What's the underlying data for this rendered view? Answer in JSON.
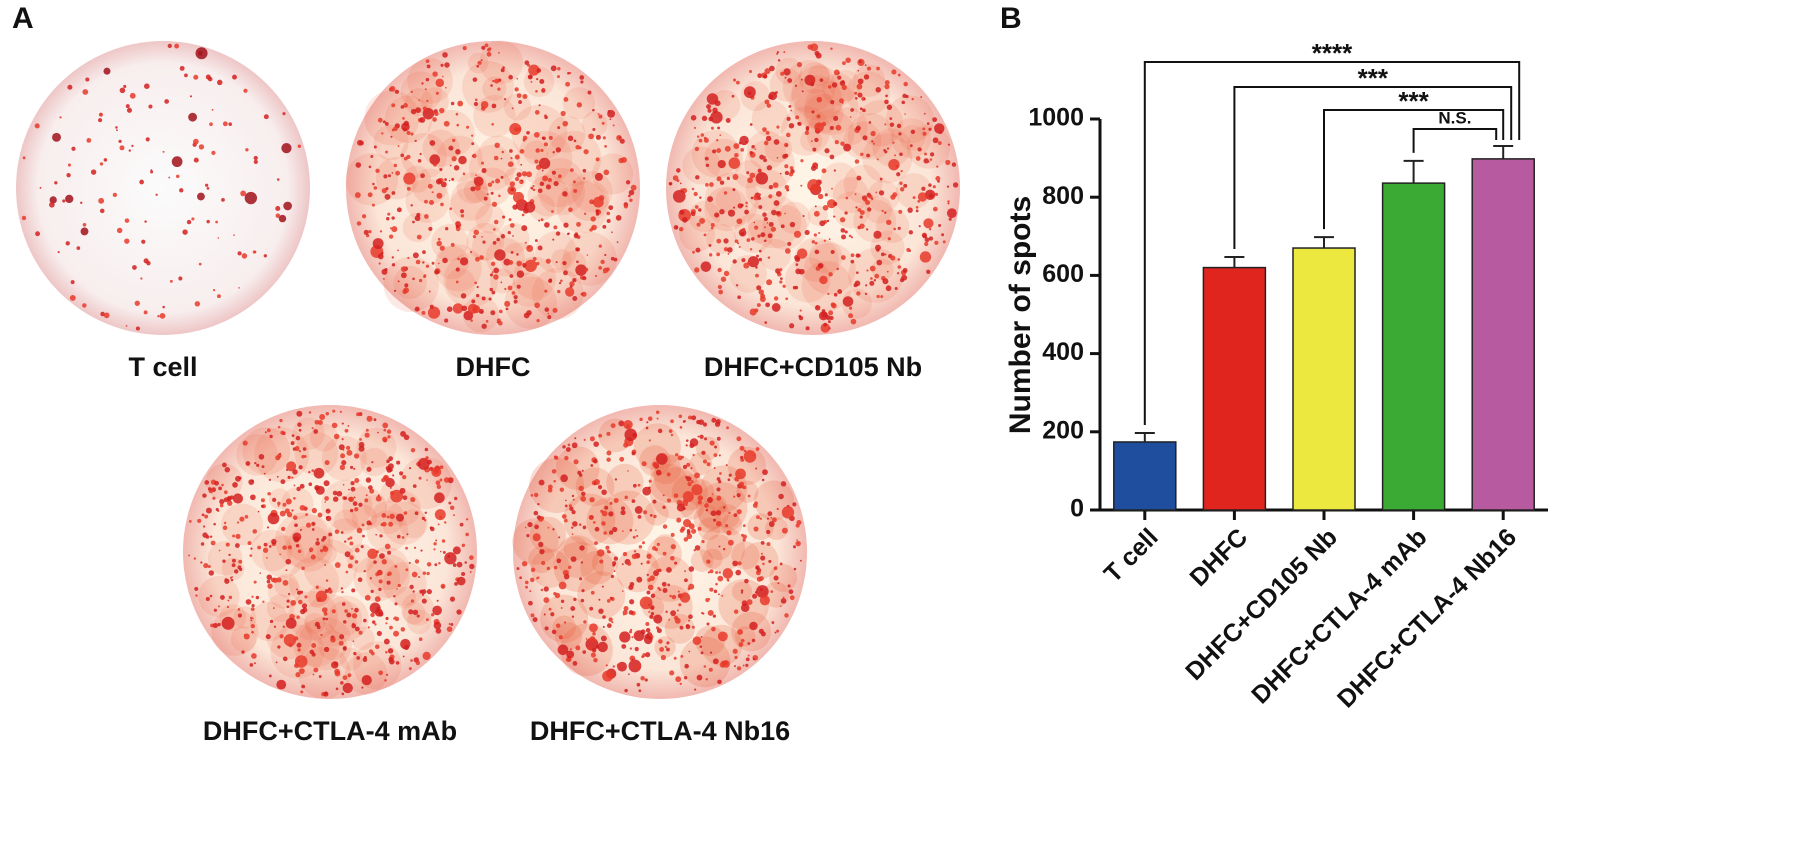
{
  "panel_a": {
    "label": "A",
    "wells": [
      "T cell",
      "DHFC",
      "DHFC+CD105 Nb",
      "DHFC+CTLA-4 mAb",
      "DHFC+CTLA-4 Nb16"
    ]
  },
  "chart_data": {
    "type": "bar",
    "panel_label": "B",
    "y_label": "Number of spots",
    "categories": [
      "T cell",
      "DHFC",
      "DHFC+CD105 Nb",
      "DHFC+CTLA-4 mAb",
      "DHFC+CTLA-4 Nb16"
    ],
    "values": [
      174,
      620,
      670,
      836,
      898
    ],
    "errors": [
      23,
      27,
      28,
      57,
      33
    ],
    "colors": [
      "#1f4e9e",
      "#e0251f",
      "#ece840",
      "#3aaa35",
      "#b85aa0"
    ],
    "ylim": [
      0,
      1000
    ],
    "yticks": [
      0,
      200,
      400,
      600,
      800,
      1000
    ],
    "significance": [
      "****",
      "***",
      "***",
      "N.S."
    ]
  }
}
